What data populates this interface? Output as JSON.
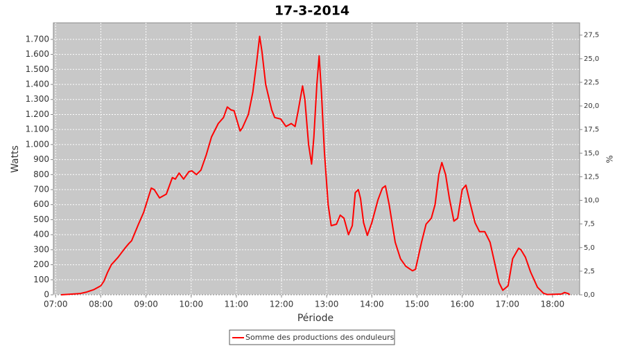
{
  "chart_data": {
    "type": "line",
    "title": "17-3-2014",
    "x_label": "Période",
    "y_label": "Watts",
    "y2_label": "%",
    "x": [
      "07:07",
      "07:18",
      "07:32",
      "07:41",
      "07:51",
      "08:00",
      "08:04",
      "08:09",
      "08:14",
      "08:23",
      "08:32",
      "08:37",
      "08:41",
      "08:50",
      "08:57",
      "09:02",
      "09:07",
      "09:11",
      "09:18",
      "09:27",
      "09:35",
      "09:39",
      "09:44",
      "09:50",
      "09:57",
      "10:01",
      "10:07",
      "10:13",
      "10:20",
      "10:27",
      "10:36",
      "10:43",
      "10:48",
      "10:53",
      "10:57",
      "11:05",
      "11:08",
      "11:16",
      "11:22",
      "11:27",
      "11:31",
      "11:34",
      "11:39",
      "11:47",
      "11:51",
      "11:59",
      "12:06",
      "12:13",
      "12:18",
      "12:22",
      "12:28",
      "12:31",
      "12:36",
      "12:40",
      "12:43",
      "12:47",
      "12:50",
      "12:53",
      "12:57",
      "13:02",
      "13:06",
      "13:13",
      "13:18",
      "13:23",
      "13:29",
      "13:34",
      "13:38",
      "13:42",
      "13:45",
      "13:49",
      "13:54",
      "14:00",
      "14:08",
      "14:14",
      "14:18",
      "14:23",
      "14:31",
      "14:38",
      "14:45",
      "14:54",
      "14:58",
      "15:06",
      "15:12",
      "15:19",
      "15:24",
      "15:29",
      "15:33",
      "15:38",
      "15:43",
      "15:49",
      "15:54",
      "16:00",
      "16:05",
      "16:10",
      "16:17",
      "16:23",
      "16:30",
      "16:37",
      "16:45",
      "16:49",
      "16:54",
      "17:01",
      "17:07",
      "17:15",
      "17:18",
      "17:24",
      "17:31",
      "17:40",
      "17:48",
      "17:53",
      "18:03",
      "18:12",
      "18:16",
      "18:21",
      "18:23"
    ],
    "series": [
      {
        "name": "Somme des productions des onduleurs",
        "color": "#ff0000",
        "values": [
          0,
          3,
          8,
          18,
          35,
          60,
          90,
          150,
          200,
          250,
          310,
          340,
          360,
          470,
          550,
          630,
          710,
          700,
          645,
          670,
          780,
          770,
          810,
          770,
          820,
          825,
          800,
          830,
          930,
          1050,
          1140,
          1180,
          1250,
          1230,
          1225,
          1090,
          1110,
          1200,
          1350,
          1550,
          1720,
          1620,
          1400,
          1230,
          1180,
          1170,
          1120,
          1140,
          1120,
          1220,
          1390,
          1300,
          1000,
          870,
          1050,
          1400,
          1590,
          1350,
          950,
          600,
          460,
          470,
          530,
          510,
          400,
          460,
          680,
          700,
          640,
          480,
          395,
          480,
          630,
          710,
          725,
          600,
          350,
          240,
          190,
          160,
          170,
          350,
          470,
          510,
          600,
          800,
          880,
          800,
          640,
          490,
          510,
          700,
          730,
          620,
          480,
          420,
          420,
          350,
          170,
          80,
          30,
          60,
          240,
          310,
          300,
          250,
          150,
          50,
          10,
          2,
          3,
          5,
          15,
          8,
          0
        ]
      }
    ],
    "xlim": [
      "06:57",
      "18:36"
    ],
    "xticks": [
      "07:00",
      "08:00",
      "09:00",
      "10:00",
      "11:00",
      "12:00",
      "13:00",
      "14:00",
      "15:00",
      "16:00",
      "17:00",
      "18:00"
    ],
    "ylim": [
      0,
      1810
    ],
    "yticks": [
      0,
      100,
      200,
      300,
      400,
      500,
      600,
      700,
      800,
      900,
      {
        "value": 1000,
        "label": "1.000"
      },
      {
        "value": 1100,
        "label": "1.100"
      },
      {
        "value": 1200,
        "label": "1.200"
      },
      {
        "value": 1300,
        "label": "1.300"
      },
      {
        "value": 1400,
        "label": "1.400"
      },
      {
        "value": 1500,
        "label": "1.500"
      },
      {
        "value": 1600,
        "label": "1.600"
      },
      {
        "value": 1700,
        "label": "1.700"
      }
    ],
    "y2lim": [
      0,
      28.8
    ],
    "y2ticks": [
      {
        "value": 0,
        "label": "0,0"
      },
      {
        "value": 2.5,
        "label": "2,5"
      },
      {
        "value": 5,
        "label": "5,0"
      },
      {
        "value": 7.5,
        "label": "7,5"
      },
      {
        "value": 10,
        "label": "10,0"
      },
      {
        "value": 12.5,
        "label": "12,5"
      },
      {
        "value": 15,
        "label": "15,0"
      },
      {
        "value": 17.5,
        "label": "17,5"
      },
      {
        "value": 20,
        "label": "20,0"
      },
      {
        "value": 22.5,
        "label": "22,5"
      },
      {
        "value": 25,
        "label": "25,0"
      },
      {
        "value": 27.5,
        "label": "27,5"
      }
    ],
    "grid": true
  }
}
